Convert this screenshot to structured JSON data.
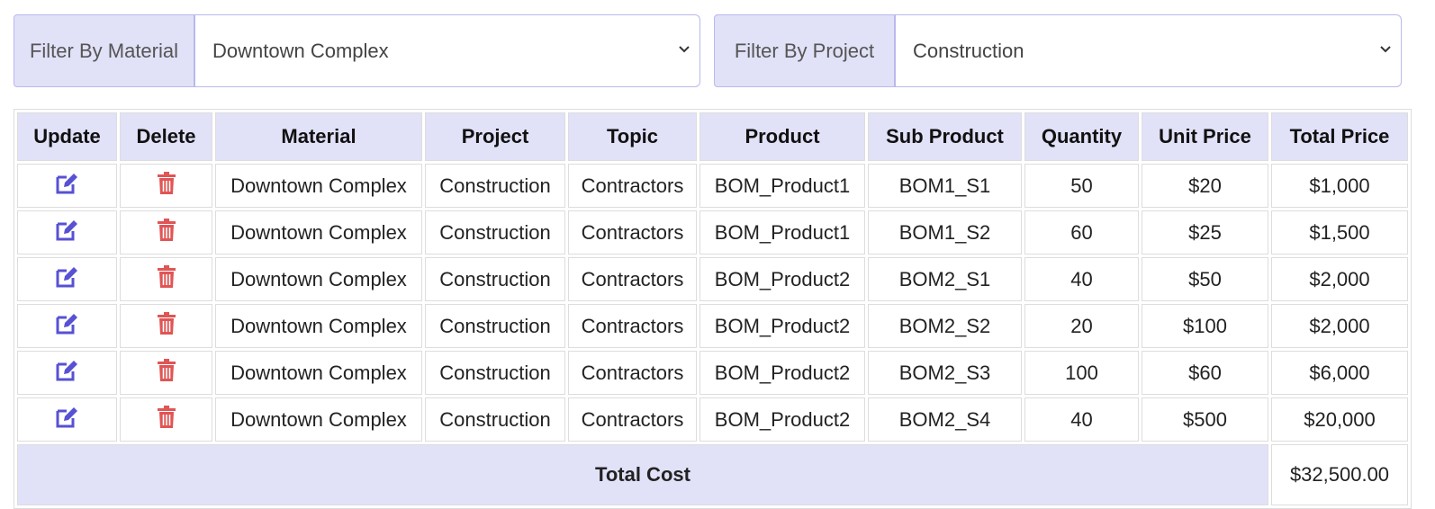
{
  "filters": [
    {
      "label": "Filter By Material",
      "selected": "Downtown Complex"
    },
    {
      "label": "Filter By Project",
      "selected": "Construction"
    }
  ],
  "table": {
    "headers": [
      "Update",
      "Delete",
      "Material",
      "Project",
      "Topic",
      "Product",
      "Sub Product",
      "Quantity",
      "Unit Price",
      "Total Price"
    ],
    "rows": [
      [
        "Downtown Complex",
        "Construction",
        "Contractors",
        "BOM_Product1",
        "BOM1_S1",
        "50",
        "$20",
        "$1,000"
      ],
      [
        "Downtown Complex",
        "Construction",
        "Contractors",
        "BOM_Product1",
        "BOM1_S2",
        "60",
        "$25",
        "$1,500"
      ],
      [
        "Downtown Complex",
        "Construction",
        "Contractors",
        "BOM_Product2",
        "BOM2_S1",
        "40",
        "$50",
        "$2,000"
      ],
      [
        "Downtown Complex",
        "Construction",
        "Contractors",
        "BOM_Product2",
        "BOM2_S2",
        "20",
        "$100",
        "$2,000"
      ],
      [
        "Downtown Complex",
        "Construction",
        "Contractors",
        "BOM_Product2",
        "BOM2_S3",
        "100",
        "$60",
        "$6,000"
      ],
      [
        "Downtown Complex",
        "Construction",
        "Contractors",
        "BOM_Product2",
        "BOM2_S4",
        "40",
        "$500",
        "$20,000"
      ]
    ],
    "footer": {
      "label": "Total Cost",
      "value": "$32,500.00"
    }
  }
}
